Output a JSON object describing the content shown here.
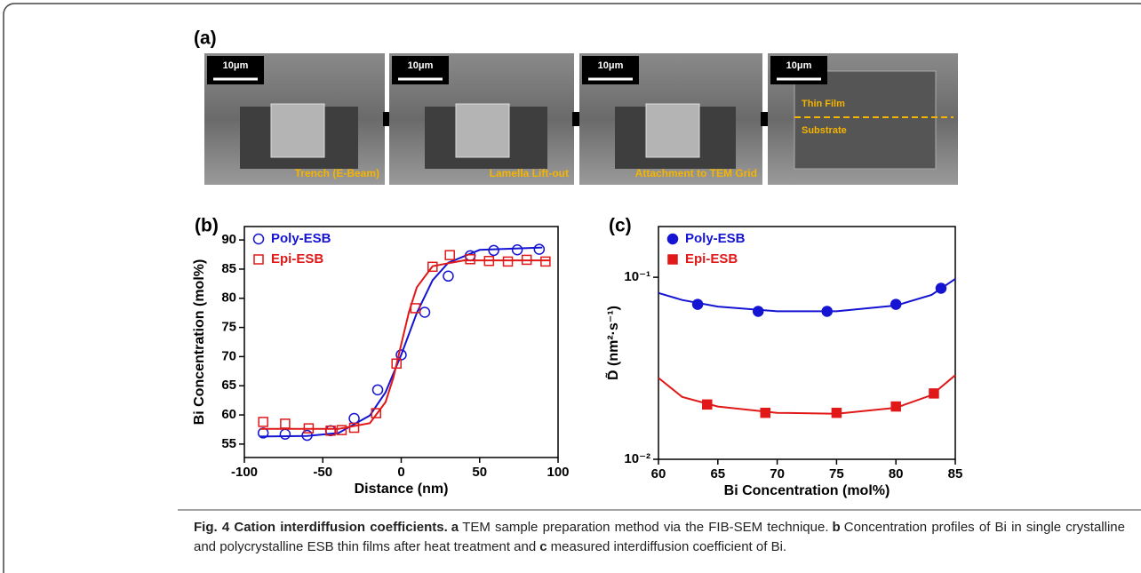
{
  "panel_a": {
    "label": "(a)",
    "images": [
      {
        "scale_bar": "10μm",
        "caption": "Trench (E-Beam)"
      },
      {
        "scale_bar": "10μm",
        "caption": "Lamella Lift-out"
      },
      {
        "scale_bar": "10μm",
        "caption": "Attachment to TEM Grid"
      },
      {
        "scale_bar": "10μm",
        "layers": [
          "Thin Film",
          "Substrate"
        ]
      }
    ]
  },
  "chart_data": [
    {
      "type": "scatter",
      "panel_label": "(b)",
      "x_label": "Distance (nm)",
      "y_label": "Bi Concentration (mol%)",
      "xlim": [
        -100,
        100
      ],
      "xticks": [
        -100,
        -50,
        0,
        50,
        100
      ],
      "ylim": [
        52.7,
        92.3
      ],
      "yticks": [
        55,
        60,
        65,
        70,
        75,
        80,
        85,
        90
      ],
      "log_y": false,
      "legend": "top-left",
      "series": [
        {
          "name": "Poly-ESB",
          "color": "#1414d2",
          "marker": "circle",
          "filled": false,
          "x": [
            -88,
            -74,
            -60,
            -45,
            -30,
            -15,
            0,
            15,
            30,
            44,
            59,
            74,
            88
          ],
          "values": [
            56.9,
            56.7,
            56.5,
            57.3,
            59.4,
            64.3,
            70.3,
            77.6,
            83.8,
            87.3,
            88.2,
            88.3,
            88.4
          ],
          "fit": {
            "x": [
              -90,
              -60,
              -40,
              -20,
              -10,
              0,
              10,
              20,
              30,
              50,
              90
            ],
            "values": [
              56.3,
              56.4,
              56.9,
              59.9,
              63.9,
              70.3,
              77.5,
              83.1,
              86.1,
              88.3,
              88.7
            ]
          }
        },
        {
          "name": "Epi-ESB",
          "color": "#e01818",
          "marker": "square",
          "filled": false,
          "x": [
            -88,
            -74,
            -59,
            -45,
            -38,
            -30,
            -16,
            -3,
            9,
            20,
            31,
            44,
            56,
            68,
            80,
            92
          ],
          "values": [
            58.8,
            58.5,
            57.7,
            57.3,
            57.4,
            57.8,
            60.3,
            68.8,
            78.3,
            85.4,
            87.4,
            86.7,
            86.4,
            86.3,
            86.6,
            86.3
          ],
          "fit": {
            "x": [
              -90,
              -40,
              -20,
              -10,
              -5,
              0,
              5,
              10,
              20,
              40,
              95
            ],
            "values": [
              57.6,
              57.6,
              58.6,
              62.2,
              66.4,
              72.1,
              77.7,
              81.9,
              85.5,
              86.5,
              86.5
            ]
          }
        }
      ]
    },
    {
      "type": "scatter",
      "panel_label": "(c)",
      "x_label": "Bi Concentration (mol%)",
      "y_label": "D̃ (nm²·s⁻¹)",
      "xlim": [
        60,
        85
      ],
      "xticks": [
        60,
        65,
        70,
        75,
        80,
        85
      ],
      "ylim": [
        0.01,
        0.19
      ],
      "yticks": [
        {
          "value": 0.01,
          "label": "10⁻²"
        },
        {
          "value": 0.1,
          "label": "10⁻¹"
        }
      ],
      "log_y": true,
      "legend": "top-left",
      "series": [
        {
          "name": "Poly-ESB",
          "color": "#1414d2",
          "marker": "circle",
          "filled": true,
          "x": [
            63.3,
            68.4,
            74.2,
            80,
            83.8
          ],
          "values": [
            0.071,
            0.065,
            0.065,
            0.071,
            0.087
          ],
          "fit": {
            "x": [
              60,
              62,
              65,
              70,
              75,
              80,
              83,
              85
            ],
            "values": [
              0.082,
              0.075,
              0.069,
              0.065,
              0.065,
              0.07,
              0.08,
              0.098
            ]
          }
        },
        {
          "name": "Epi-ESB",
          "color": "#e01818",
          "marker": "square",
          "filled": true,
          "x": [
            64.1,
            69,
            75,
            80,
            83.2
          ],
          "values": [
            0.02,
            0.018,
            0.018,
            0.0195,
            0.023
          ],
          "fit": {
            "x": [
              60,
              62,
              65,
              70,
              75,
              80,
              83,
              85
            ],
            "values": [
              0.028,
              0.022,
              0.0195,
              0.018,
              0.0178,
              0.0192,
              0.0225,
              0.029
            ]
          }
        }
      ]
    }
  ],
  "caption": {
    "segments": [
      {
        "text": "Fig. 4 Cation interdiffusion coefficients.",
        "bold": true
      },
      {
        "text": "a",
        "bold": true
      },
      {
        "text": "TEM sample preparation method via the FIB-SEM technique.",
        "bold": false
      },
      {
        "text": "b",
        "bold": true
      },
      {
        "text": "Concentration profiles of Bi in single crystalline and polycrystalline ESB thin films after heat treatment and",
        "bold": false
      },
      {
        "text": "c",
        "bold": true
      },
      {
        "text": "measured interdiffusion coefficient of Bi.",
        "bold": false
      }
    ]
  }
}
